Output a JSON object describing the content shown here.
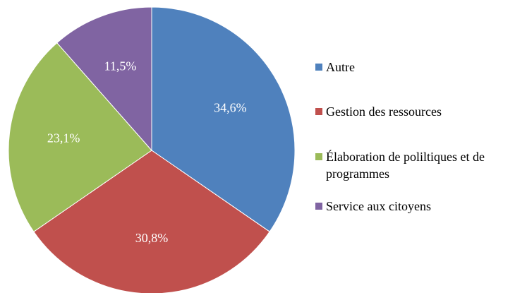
{
  "chart_data": {
    "type": "pie",
    "categories": [
      "Autre",
      "Gestion des ressources",
      "Élaboration de poliltiques et de programmes",
      "Service aux citoyens"
    ],
    "values": [
      34.6,
      30.8,
      23.1,
      11.5
    ],
    "value_labels": [
      "34,6%",
      "30,8%",
      "23,1%",
      "11,5%"
    ],
    "colors": [
      "#4f81bd",
      "#c0504d",
      "#9bbb59",
      "#8064a2"
    ],
    "legend": "right"
  }
}
